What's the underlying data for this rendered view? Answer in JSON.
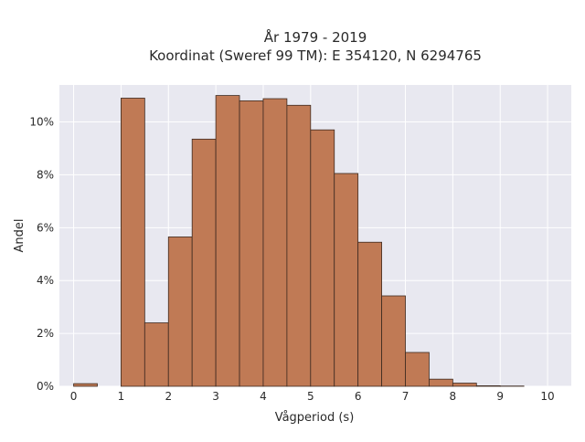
{
  "chart_data": {
    "type": "bar",
    "title_line1": "År 1979 - 2019",
    "title_line2": "Koordinat (Sweref 99 TM): E 354120, N 6294765",
    "xlabel": "Vågperiod (s)",
    "ylabel": "Andel",
    "xlim": [
      -0.3,
      10.5
    ],
    "ylim": [
      0,
      0.114
    ],
    "x_ticks": [
      0,
      1,
      2,
      3,
      4,
      5,
      6,
      7,
      8,
      9,
      10
    ],
    "y_ticks": [
      0,
      0.02,
      0.04,
      0.06,
      0.08,
      0.1
    ],
    "y_tick_labels": [
      "0%",
      "2%",
      "4%",
      "6%",
      "8%",
      "10%"
    ],
    "bin_width": 0.5,
    "bins": [
      {
        "x0": 0.0,
        "value": 0.001
      },
      {
        "x0": 0.5,
        "value": 0.0
      },
      {
        "x0": 1.0,
        "value": 0.109
      },
      {
        "x0": 1.5,
        "value": 0.024
      },
      {
        "x0": 2.0,
        "value": 0.0565
      },
      {
        "x0": 2.5,
        "value": 0.0935
      },
      {
        "x0": 3.0,
        "value": 0.11
      },
      {
        "x0": 3.5,
        "value": 0.108
      },
      {
        "x0": 4.0,
        "value": 0.1088
      },
      {
        "x0": 4.5,
        "value": 0.1063
      },
      {
        "x0": 5.0,
        "value": 0.097
      },
      {
        "x0": 5.5,
        "value": 0.0805
      },
      {
        "x0": 6.0,
        "value": 0.0545
      },
      {
        "x0": 6.5,
        "value": 0.0342
      },
      {
        "x0": 7.0,
        "value": 0.0128
      },
      {
        "x0": 7.5,
        "value": 0.0027
      },
      {
        "x0": 8.0,
        "value": 0.0012
      },
      {
        "x0": 8.5,
        "value": 0.0002
      },
      {
        "x0": 9.0,
        "value": 0.0001
      }
    ],
    "bar_color": "#c07a55",
    "bar_edge_color": "#3d2a20",
    "plot_background": "#e8e8f0",
    "grid_color": "#ffffff",
    "grid": true
  }
}
